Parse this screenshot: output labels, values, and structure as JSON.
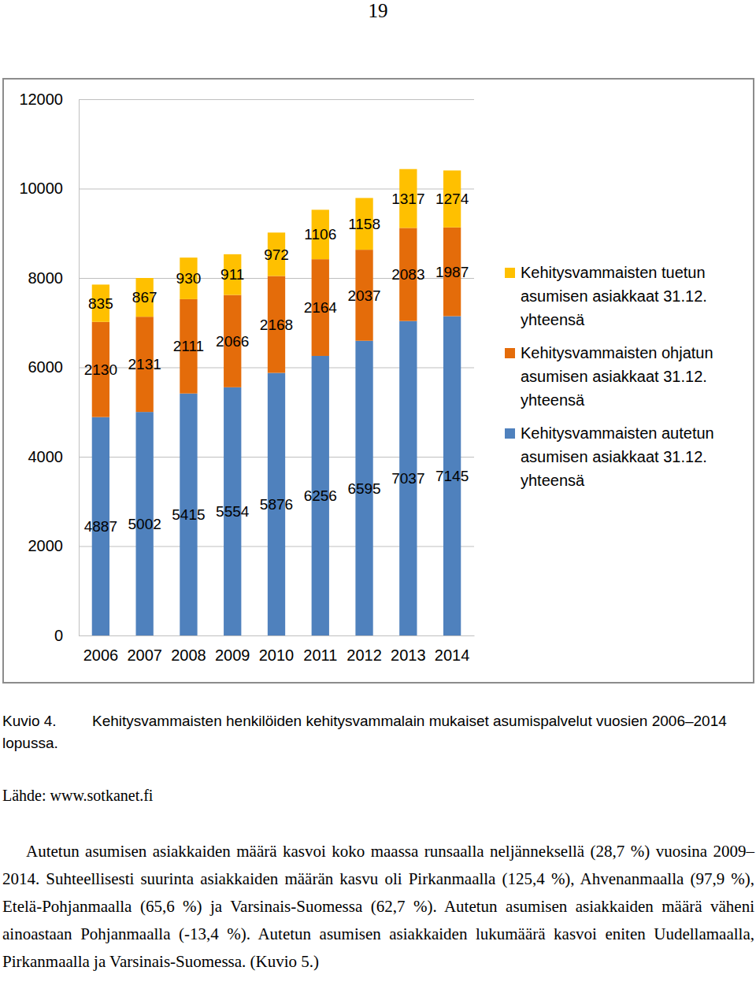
{
  "page_number": "19",
  "chart_data": {
    "type": "bar",
    "stacked": true,
    "data_labels": true,
    "grid": true,
    "legend": "right",
    "categories": [
      "2006",
      "2007",
      "2008",
      "2009",
      "2010",
      "2011",
      "2012",
      "2013",
      "2014"
    ],
    "series": [
      {
        "name": "Kehitysvammaisten autetun asumisen asiakkaat 31.12. yhteensä",
        "color": "#4f81bd",
        "values": [
          4887,
          5002,
          5415,
          5554,
          5876,
          6256,
          6595,
          7037,
          7145
        ]
      },
      {
        "name": "Kehitysvammaisten ohjatun asumisen asiakkaat 31.12. yhteensä",
        "color": "#e46c0a",
        "values": [
          2130,
          2131,
          2111,
          2066,
          2168,
          2164,
          2037,
          2083,
          1987
        ]
      },
      {
        "name": "Kehitysvammaisten tuetun asumisen asiakkaat 31.12. yhteensä",
        "color": "#ffc000",
        "values": [
          835,
          867,
          930,
          911,
          972,
          1106,
          1158,
          1317,
          1274
        ]
      }
    ],
    "ylim": [
      0,
      12000
    ],
    "yticks": [
      0,
      2000,
      4000,
      6000,
      8000,
      10000,
      12000
    ]
  },
  "caption": {
    "label": "Kuvio 4.",
    "text": "Kehitysvammaisten henkilöiden kehitysvammalain mukaiset asumispalvelut vuosien 2006–2014 lopussa."
  },
  "source": "Lähde: www.sotkanet.fi",
  "paragraph": "Autetun asumisen asiakkaiden määrä kasvoi koko maassa runsaalla neljänneksellä (28,7 %) vuosina 2009–2014. Suhteellisesti suurinta asiakkaiden määrän kasvu oli Pirkanmaalla (125,4 %), Ahvenanmaalla (97,9 %), Etelä-Pohjanmaalla (65,6 %) ja Varsinais-Suomessa (62,7 %). Autetun asumisen asiakkaiden määrä väheni ainoastaan Pohjanmaalla (-13,4 %). Autetun asumisen asiakkaiden lukumäärä kasvoi eniten Uudellamaalla, Pirkanmaalla ja Varsinais-Suomessa. (Kuvio 5.)"
}
